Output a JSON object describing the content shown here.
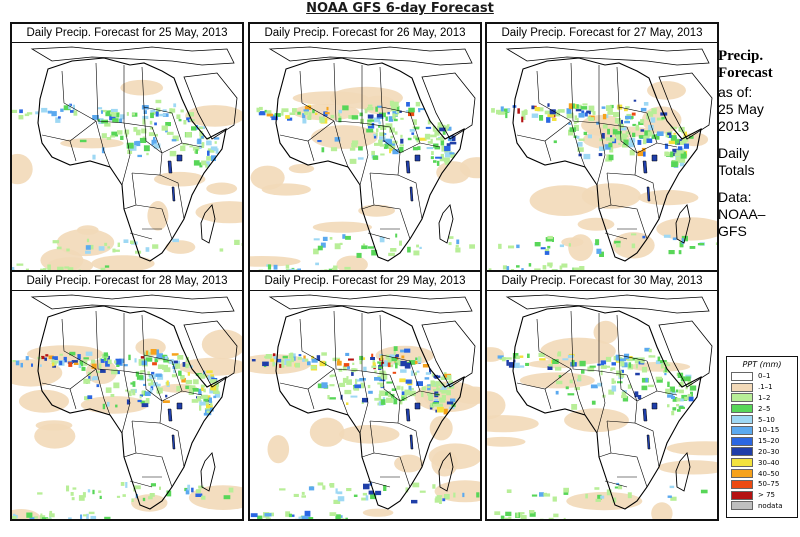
{
  "title": "NOAA GFS 6-day Forecast",
  "panels": [
    {
      "title": "Daily Precip. Forecast for  25 May, 2013"
    },
    {
      "title": "Daily Precip. Forecast for  26 May, 2013"
    },
    {
      "title": "Daily Precip. Forecast for  27 May, 2013"
    },
    {
      "title": "Daily Precip. Forecast for  28 May, 2013"
    },
    {
      "title": "Daily Precip. Forecast for  29 May, 2013"
    },
    {
      "title": "Daily Precip. Forecast for  30 May, 2013"
    }
  ],
  "side": {
    "line1": "Precip.",
    "line2": "Forecast",
    "line3": "as of:",
    "line4": "25 May",
    "line5": "2013",
    "line6": "Daily",
    "line7": "Totals",
    "line8": "Data:",
    "line9": "NOAA–",
    "line10": "GFS"
  },
  "legend": {
    "title": "PPT (mm)",
    "items": [
      {
        "label": "0–1",
        "color": "#ffffff"
      },
      {
        "label": ".1–1",
        "color": "#f2d9b8"
      },
      {
        "label": "1–2",
        "color": "#b8ee98"
      },
      {
        "label": "2–5",
        "color": "#58d658"
      },
      {
        "label": "5–10",
        "color": "#9ed8f4"
      },
      {
        "label": "10–15",
        "color": "#5ba9ef"
      },
      {
        "label": "15–20",
        "color": "#2a66e2"
      },
      {
        "label": "20–30",
        "color": "#1f3ea8"
      },
      {
        "label": "30–40",
        "color": "#f3e23c"
      },
      {
        "label": "40–50",
        "color": "#f6a21c"
      },
      {
        "label": "50–75",
        "color": "#ec4a12"
      },
      {
        "label": "> 75",
        "color": "#b41212"
      },
      {
        "label": "nodata",
        "color": "#bfbfbf"
      }
    ]
  }
}
